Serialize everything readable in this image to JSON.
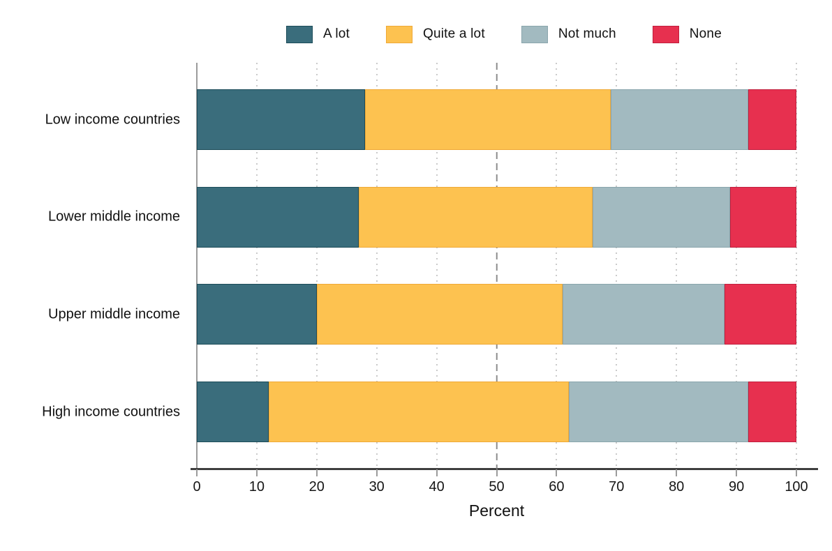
{
  "chart_data": {
    "type": "bar",
    "orientation": "horizontal",
    "stacked": true,
    "title": "",
    "xlabel": "Percent",
    "xlim": [
      0,
      100
    ],
    "xticks": [
      0,
      10,
      20,
      30,
      40,
      50,
      60,
      70,
      80,
      90,
      100
    ],
    "reference_line_x": 50,
    "grid": "dotted-vertical",
    "legend_position": "top",
    "categories": [
      "Low income countries",
      "Lower middle income",
      "Upper middle income",
      "High income countries"
    ],
    "series": [
      {
        "name": "A lot",
        "color": "#3A6D7C",
        "edge_color": "#1C4C59",
        "values": [
          28,
          27,
          20,
          12
        ]
      },
      {
        "name": "Quite a lot",
        "color": "#FDC250",
        "edge_color": "#EFA937",
        "values": [
          41,
          39,
          41,
          50
        ]
      },
      {
        "name": "Not much",
        "color": "#A2BAC0",
        "edge_color": "#8AA5AC",
        "values": [
          23,
          23,
          27,
          30
        ]
      },
      {
        "name": "None",
        "color": "#E7304F",
        "edge_color": "#C01F3E",
        "values": [
          8,
          11,
          12,
          8
        ]
      }
    ]
  }
}
